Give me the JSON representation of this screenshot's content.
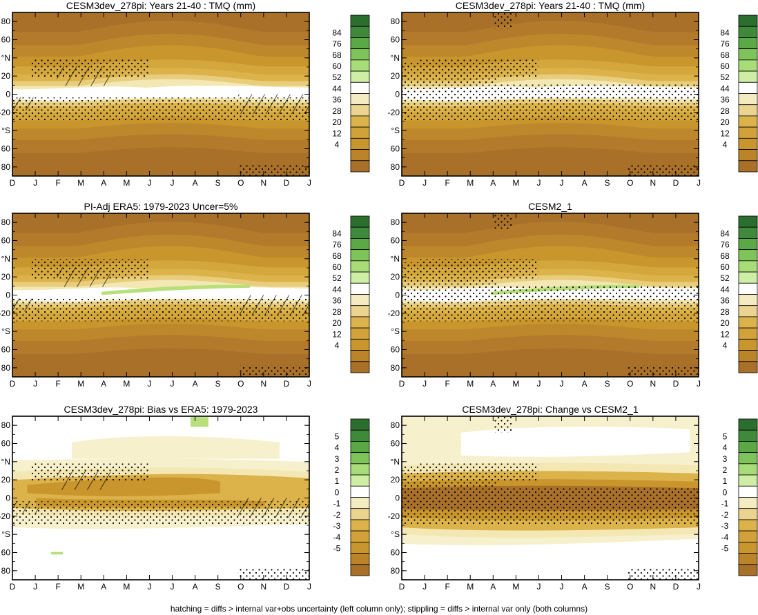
{
  "footer": "hatching = diffs > internal var+obs uncertainty (left column only); stippling = diffs > internal var only (both columns)",
  "colors": {
    "brown_dark": "#a87028",
    "brown_mid": "#c8962c",
    "tan": "#dcb24a",
    "cream": "#f3e7b4",
    "pale_cream": "#f7f0cc",
    "light_green": "#b8e07a",
    "green": "#6fb94f",
    "dark_green": "#2c6e2e"
  },
  "chart_data": [
    {
      "type": "heatmap",
      "title": "CESM3dev_278pi: Years 21-40 : TMQ (mm)",
      "variable": "TMQ",
      "x_ticks": [
        "D",
        "J",
        "F",
        "M",
        "A",
        "M",
        "J",
        "J",
        "A",
        "S",
        "O",
        "N",
        "D",
        "J"
      ],
      "y_ticks": [
        "80",
        "60",
        "°N",
        "20",
        "0",
        "-20",
        "°S",
        "60",
        "80"
      ],
      "y_values": [
        80,
        60,
        40,
        20,
        0,
        -20,
        -40,
        -60,
        -80
      ],
      "ylim": [
        -90,
        90
      ],
      "colorbar_labels": [
        "84",
        "76",
        "68",
        "60",
        "52",
        "44",
        "36",
        "28",
        "20",
        "12",
        "4"
      ],
      "colorbar_colors": [
        "#2c6e2e",
        "#3f8a3a",
        "#5aa846",
        "#7fc45a",
        "#a8dc78",
        "#cdeea4",
        "#ffffff",
        "#f4ebc2",
        "#ead490",
        "#dcb24a",
        "#d1a23a",
        "#c8962c",
        "#bb8428",
        "#a87028"
      ],
      "hatching": true,
      "stippling": true
    },
    {
      "type": "heatmap",
      "title": "CESM3dev_278pi: Years 21-40 : TMQ (mm)",
      "variable": "TMQ",
      "x_ticks": [
        "D",
        "J",
        "F",
        "M",
        "A",
        "M",
        "J",
        "J",
        "A",
        "S",
        "O",
        "N",
        "D",
        "J"
      ],
      "y_ticks": [
        "80",
        "60",
        "°N",
        "20",
        "0",
        "-20",
        "°S",
        "60",
        "80"
      ],
      "y_values": [
        80,
        60,
        40,
        20,
        0,
        -20,
        -40,
        -60,
        -80
      ],
      "ylim": [
        -90,
        90
      ],
      "colorbar_labels": [
        "84",
        "76",
        "68",
        "60",
        "52",
        "44",
        "36",
        "28",
        "20",
        "12",
        "4"
      ],
      "colorbar_colors": [
        "#2c6e2e",
        "#3f8a3a",
        "#5aa846",
        "#7fc45a",
        "#a8dc78",
        "#cdeea4",
        "#ffffff",
        "#f4ebc2",
        "#ead490",
        "#dcb24a",
        "#d1a23a",
        "#c8962c",
        "#bb8428",
        "#a87028"
      ],
      "hatching": false,
      "stippling": true
    },
    {
      "type": "heatmap",
      "title": "PI-Adj ERA5: 1979-2023 Uncer=5%",
      "variable": "TMQ",
      "x_ticks": [
        "D",
        "J",
        "F",
        "M",
        "A",
        "M",
        "J",
        "J",
        "A",
        "S",
        "O",
        "N",
        "D",
        "J"
      ],
      "y_ticks": [
        "80",
        "60",
        "°N",
        "20",
        "0",
        "-20",
        "°S",
        "60",
        "80"
      ],
      "y_values": [
        80,
        60,
        40,
        20,
        0,
        -20,
        -40,
        -60,
        -80
      ],
      "ylim": [
        -90,
        90
      ],
      "colorbar_labels": [
        "84",
        "76",
        "68",
        "60",
        "52",
        "44",
        "36",
        "28",
        "20",
        "12",
        "4"
      ],
      "colorbar_colors": [
        "#2c6e2e",
        "#3f8a3a",
        "#5aa846",
        "#7fc45a",
        "#a8dc78",
        "#cdeea4",
        "#ffffff",
        "#f4ebc2",
        "#ead490",
        "#dcb24a",
        "#d1a23a",
        "#c8962c",
        "#bb8428",
        "#a87028"
      ],
      "hatching": true,
      "stippling": true
    },
    {
      "type": "heatmap",
      "title": "CESM2_1",
      "variable": "TMQ",
      "x_ticks": [
        "D",
        "J",
        "F",
        "M",
        "A",
        "M",
        "J",
        "J",
        "A",
        "S",
        "O",
        "N",
        "D",
        "J"
      ],
      "y_ticks": [
        "80",
        "60",
        "°N",
        "20",
        "0",
        "-20",
        "°S",
        "60",
        "80"
      ],
      "y_values": [
        80,
        60,
        40,
        20,
        0,
        -20,
        -40,
        -60,
        -80
      ],
      "ylim": [
        -90,
        90
      ],
      "colorbar_labels": [
        "84",
        "76",
        "68",
        "60",
        "52",
        "44",
        "36",
        "28",
        "20",
        "12",
        "4"
      ],
      "colorbar_colors": [
        "#2c6e2e",
        "#3f8a3a",
        "#5aa846",
        "#7fc45a",
        "#a8dc78",
        "#cdeea4",
        "#ffffff",
        "#f4ebc2",
        "#ead490",
        "#dcb24a",
        "#d1a23a",
        "#c8962c",
        "#bb8428",
        "#a87028"
      ],
      "hatching": false,
      "stippling": true
    },
    {
      "type": "heatmap",
      "title": "CESM3dev_278pi: Bias vs ERA5: 1979-2023",
      "variable": "TMQ bias",
      "x_ticks": [
        "D",
        "J",
        "F",
        "M",
        "A",
        "M",
        "J",
        "J",
        "A",
        "S",
        "O",
        "N",
        "D",
        "J"
      ],
      "y_ticks": [
        "80",
        "60",
        "°N",
        "20",
        "0",
        "-20",
        "°S",
        "60",
        "80"
      ],
      "y_values": [
        80,
        60,
        40,
        20,
        0,
        -20,
        -40,
        -60,
        -80
      ],
      "ylim": [
        -90,
        90
      ],
      "colorbar_labels": [
        "5",
        "4",
        "3",
        "2",
        "1",
        "0",
        "-1",
        "-2",
        "-3",
        "-4",
        "-5"
      ],
      "colorbar_colors": [
        "#2c6e2e",
        "#3f8a3a",
        "#5aa846",
        "#7fc45a",
        "#a8dc78",
        "#cdeea4",
        "#ffffff",
        "#f4ebc2",
        "#ead490",
        "#dcb24a",
        "#d1a23a",
        "#c8962c",
        "#bb8428",
        "#a87028"
      ],
      "hatching": true,
      "stippling": true
    },
    {
      "type": "heatmap",
      "title": "CESM3dev_278pi: Change vs CESM2_1",
      "variable": "TMQ change",
      "x_ticks": [
        "D",
        "J",
        "F",
        "M",
        "A",
        "M",
        "J",
        "J",
        "A",
        "S",
        "O",
        "N",
        "D",
        "J"
      ],
      "y_ticks": [
        "80",
        "60",
        "°N",
        "20",
        "0",
        "-20",
        "°S",
        "60",
        "80"
      ],
      "y_values": [
        80,
        60,
        40,
        20,
        0,
        -20,
        -40,
        -60,
        -80
      ],
      "ylim": [
        -90,
        90
      ],
      "colorbar_labels": [
        "5",
        "4",
        "3",
        "2",
        "1",
        "0",
        "-1",
        "-2",
        "-3",
        "-4",
        "-5"
      ],
      "colorbar_colors": [
        "#2c6e2e",
        "#3f8a3a",
        "#5aa846",
        "#7fc45a",
        "#a8dc78",
        "#cdeea4",
        "#ffffff",
        "#f4ebc2",
        "#ead490",
        "#dcb24a",
        "#d1a23a",
        "#c8962c",
        "#bb8428",
        "#a87028"
      ],
      "hatching": false,
      "stippling": true
    }
  ]
}
